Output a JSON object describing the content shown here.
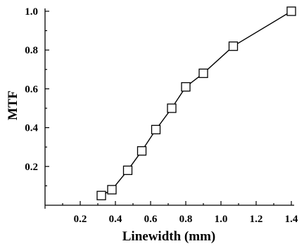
{
  "chart_data": {
    "type": "line",
    "title": "",
    "xlabel": "Linewidth (mm)",
    "ylabel": "MTF",
    "xlim": [
      0,
      1.4
    ],
    "ylim": [
      0,
      1.0
    ],
    "xticks": [
      0.2,
      0.4,
      0.6,
      0.8,
      1.0,
      1.2,
      1.4
    ],
    "xtick_labels": [
      "0.2",
      "0.4",
      "0.6",
      "0.8",
      "1.0",
      "1.2",
      "1.4"
    ],
    "yticks": [
      0.2,
      0.4,
      0.6,
      0.8,
      1.0
    ],
    "ytick_labels": [
      "0.2",
      "0.4",
      "0.6",
      "0.8",
      "1.0"
    ],
    "grid": false,
    "marker": "open-square",
    "series": [
      {
        "x": [
          0.32,
          0.38,
          0.47,
          0.55,
          0.63,
          0.72,
          0.8,
          0.9,
          1.07,
          1.4
        ],
        "y": [
          0.05,
          0.08,
          0.18,
          0.28,
          0.39,
          0.5,
          0.61,
          0.68,
          0.82,
          1.0
        ]
      }
    ]
  }
}
